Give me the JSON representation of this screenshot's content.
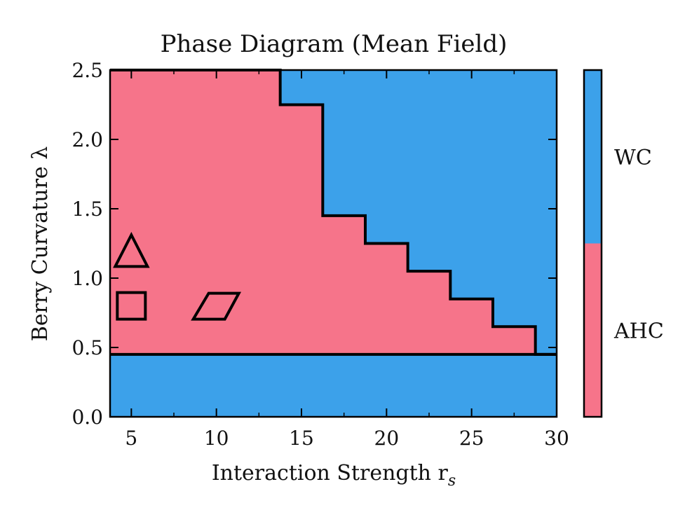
{
  "chart_data": {
    "type": "heatmap",
    "title": "Phase Diagram (Mean Field)",
    "xlabel": "Interaction Strength r",
    "xlabel_subscript": "s",
    "ylabel": "Berry Curvature λ",
    "xlim": [
      3.75,
      30.0
    ],
    "ylim": [
      0.0,
      2.5
    ],
    "x_ticks": [
      5,
      10,
      15,
      20,
      25,
      30
    ],
    "x_tick_labels": [
      "5",
      "10",
      "15",
      "20",
      "25",
      "30"
    ],
    "y_ticks": [
      0.0,
      0.5,
      1.0,
      1.5,
      2.0,
      2.5
    ],
    "y_tick_labels": [
      "0.0",
      "0.5",
      "1.0",
      "1.5",
      "2.0",
      "2.5"
    ],
    "colors": {
      "AHC": "#f6748a",
      "WC": "#3ca1ea",
      "boundary": "#000000"
    },
    "colorbar": [
      {
        "label": "WC",
        "color": "#3ca1ea"
      },
      {
        "label": "AHC",
        "color": "#f6748a"
      }
    ],
    "phases": {
      "lower_band_max_lambda": 0.45,
      "ahc_boundary_steps": [
        {
          "rs_max": 13.75,
          "lambda_max": 2.5
        },
        {
          "rs_max": 16.25,
          "lambda_max": 2.25
        },
        {
          "rs_max": 18.75,
          "lambda_max": 1.45
        },
        {
          "rs_max": 21.25,
          "lambda_max": 1.25
        },
        {
          "rs_max": 23.75,
          "lambda_max": 1.05
        },
        {
          "rs_max": 26.25,
          "lambda_max": 0.85
        },
        {
          "rs_max": 28.75,
          "lambda_max": 0.65
        },
        {
          "rs_max": 30.0,
          "lambda_max": 0.45
        }
      ]
    },
    "markers": [
      {
        "shape": "triangle",
        "rs": 5.0,
        "lambda": 1.19
      },
      {
        "shape": "square",
        "rs": 5.0,
        "lambda": 0.8
      },
      {
        "shape": "rhombus",
        "rs": 10.0,
        "lambda": 0.8
      }
    ]
  }
}
